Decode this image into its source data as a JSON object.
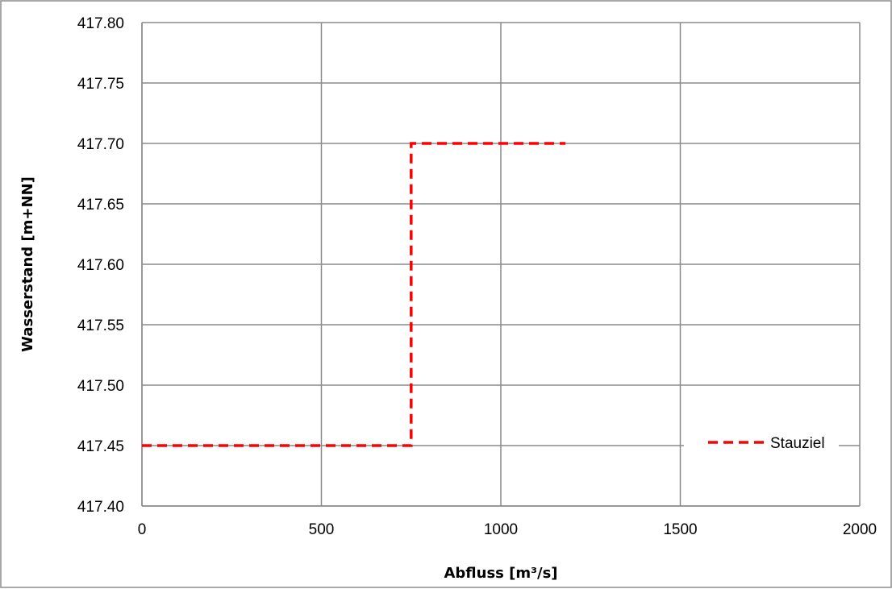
{
  "chart_data": {
    "type": "line",
    "xlabel": "Abfluss [m³/s]",
    "ylabel": "Wasserstand [m+NN]",
    "xlim": [
      0,
      2000
    ],
    "ylim": [
      417.4,
      417.8
    ],
    "x_ticks": [
      0,
      500,
      1000,
      1500,
      2000
    ],
    "x_tick_labels": [
      "0",
      "500",
      "1000",
      "1500",
      "2000"
    ],
    "y_ticks": [
      417.4,
      417.45,
      417.5,
      417.55,
      417.6,
      417.65,
      417.7,
      417.75,
      417.8
    ],
    "y_tick_labels": [
      "417.40",
      "417.45",
      "417.50",
      "417.55",
      "417.60",
      "417.65",
      "417.70",
      "417.75",
      "417.80"
    ],
    "grid": true,
    "legend_position": "right",
    "series": [
      {
        "name": "Stauziel",
        "color": "#ff0000",
        "line_style": "dashed",
        "x": [
          0,
          750,
          750,
          1180
        ],
        "y": [
          417.45,
          417.45,
          417.7,
          417.7
        ]
      }
    ]
  }
}
